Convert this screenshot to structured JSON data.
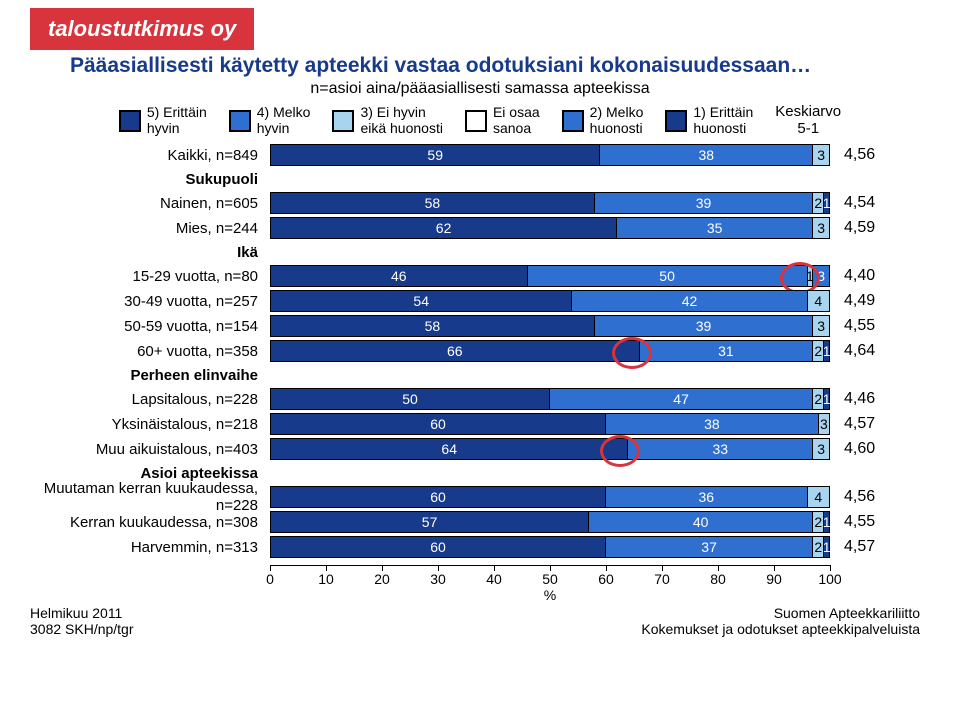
{
  "logo_text": "taloustutkimus oy",
  "title": "Pääasiallisesti käytetty apteekki vastaa odotuksiani kokonaisuudessaan…",
  "subtitle": "n=asioi aina/pääasiallisesti samassa apteekissa",
  "legend": {
    "items": [
      {
        "label": "5) Erittäin\nhyvin",
        "color": "#173a8a",
        "text": "light"
      },
      {
        "label": "4) Melko\nhyvin",
        "color": "#2f6fd0",
        "text": "light"
      },
      {
        "label": "3) Ei hyvin\neikä huonosti",
        "color": "#a9d4f0",
        "text": "dark"
      },
      {
        "label": "Ei osaa\nsanoa",
        "color": "#ffffff",
        "text": "dark"
      },
      {
        "label": "2) Melko\nhuonosti",
        "color": "#2f6fd0",
        "text": "light"
      },
      {
        "label": "1) Erittäin\nhuonosti",
        "color": "#173a8a",
        "text": "light"
      }
    ],
    "keski_label": "Keskiarvo\n5-1"
  },
  "chart": {
    "type": "stacked-bar-horizontal",
    "x_max": 100,
    "seg_colors": [
      "#173a8a",
      "#2f6fd0",
      "#a9d4f0",
      "#ffffff",
      "#2f6fd0",
      "#173a8a"
    ],
    "seg_text_class": [
      "dark",
      "dark",
      "light",
      "light",
      "dark",
      "dark"
    ],
    "rows": [
      {
        "label": "Kaikki, n=849",
        "values": [
          59,
          38,
          3,
          0,
          0,
          0
        ],
        "mean": "4,56",
        "row_type": "data"
      },
      {
        "label": "Sukupuoli",
        "row_type": "section"
      },
      {
        "label": "Nainen, n=605",
        "values": [
          58,
          39,
          2,
          0,
          0,
          1
        ],
        "mean": "4,54",
        "row_type": "data"
      },
      {
        "label": "Mies, n=244",
        "values": [
          62,
          35,
          3,
          0,
          0,
          0
        ],
        "mean": "4,59",
        "row_type": "data"
      },
      {
        "label": "Ikä",
        "row_type": "section"
      },
      {
        "label": "15-29 vuotta, n=80",
        "values": [
          46,
          50,
          1,
          0,
          3,
          0
        ],
        "mean": "4,40",
        "row_type": "data",
        "circle": true,
        "circle_seg": 1
      },
      {
        "label": "30-49 vuotta, n=257",
        "values": [
          54,
          42,
          4,
          0,
          0,
          0
        ],
        "mean": "4,49",
        "row_type": "data"
      },
      {
        "label": "50-59 vuotta, n=154",
        "values": [
          58,
          39,
          3,
          0,
          0,
          0
        ],
        "mean": "4,55",
        "row_type": "data"
      },
      {
        "label": "60+ vuotta, n=358",
        "values": [
          66,
          31,
          2,
          0,
          0,
          1
        ],
        "mean": "4,64",
        "row_type": "data",
        "circle": true,
        "circle_seg": 0
      },
      {
        "label": "Perheen elinvaihe",
        "row_type": "section"
      },
      {
        "label": "Lapsitalous, n=228",
        "values": [
          50,
          47,
          2,
          0,
          0,
          1
        ],
        "mean": "4,46",
        "row_type": "data"
      },
      {
        "label": "Yksinäistalous, n=218",
        "values": [
          60,
          38,
          2,
          0,
          0,
          0
        ],
        "show3": "3",
        "mean": "4,57",
        "row_type": "data"
      },
      {
        "label": "Muu aikuistalous, n=403",
        "values": [
          64,
          33,
          3,
          0,
          0,
          0
        ],
        "mean": "4,60",
        "row_type": "data",
        "circle": true,
        "circle_seg": 0
      },
      {
        "label": "Asioi apteekissa",
        "row_type": "section"
      },
      {
        "label": "Muutaman kerran kuukaudessa, n=228",
        "values": [
          60,
          36,
          4,
          0,
          0,
          0
        ],
        "mean": "4,56",
        "row_type": "data"
      },
      {
        "label": "Kerran kuukaudessa, n=308",
        "values": [
          57,
          40,
          2,
          0,
          0,
          1
        ],
        "mean": "4,55",
        "row_type": "data"
      },
      {
        "label": "Harvemmin, n=313",
        "values": [
          60,
          37,
          2,
          0,
          0,
          1
        ],
        "mean": "4,57",
        "row_type": "data"
      }
    ],
    "ticks": [
      0,
      10,
      20,
      30,
      40,
      50,
      60,
      70,
      80,
      90,
      100
    ],
    "axis_label": "%"
  },
  "footer": {
    "left1": "Helmikuu 2011",
    "left2": "3082 SKH/np/tgr",
    "right1": "Suomen Apteekkariliitto",
    "right2": "Kokemukset ja odotukset apteekkipalveluista"
  }
}
